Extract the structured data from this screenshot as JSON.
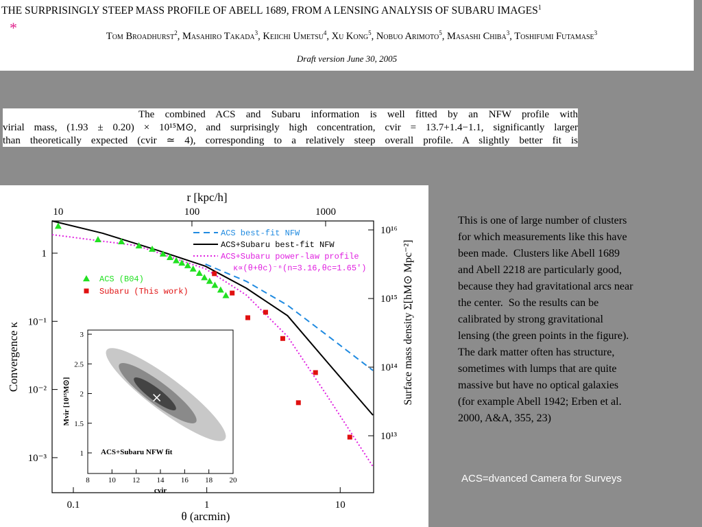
{
  "header": {
    "asterisk": "*",
    "title": "THE SURPRISINGLY STEEP MASS PROFILE OF ABELL 1689, FROM A LENSING ANALYSIS OF SUBARU IMAGES",
    "title_sup": 1,
    "authors": [
      {
        "name": "Tom Broadhurst",
        "sup": 2
      },
      {
        "name": "Masahiro Takada",
        "sup": 3
      },
      {
        "name": "Keiichi Umetsu",
        "sup": 4
      },
      {
        "name": "Xu Kong",
        "sup": 5
      },
      {
        "name": "Nobuo Arimoto",
        "sup": 5
      },
      {
        "name": "Masashi Chiba",
        "sup": 3
      },
      {
        "name": "Toshifumi Futamase",
        "sup": 3
      }
    ],
    "draft": "Draft version June 30, 2005"
  },
  "abstract": {
    "lines": [
      "The combined ACS and Subaru information is well fitted by an NFW profile with",
      "virial mass, (1.93 ± 0.20) × 10¹⁵M⊙, and surprisingly high concentration, cvir = 13.7+1.4−1.1, significantly larger",
      "than theoretically expected (cvir ≃ 4), corresponding to a relatively steep overall profile. A slightly better fit is"
    ]
  },
  "figure": {
    "xlabel": "θ (arcmin)",
    "ylabel": "Convergence κ",
    "toplabel": "r [kpc/h]",
    "rightlabel": "Surface mass density Σ[hM⊙ Mpc⁻²]",
    "xlim": [
      0.0693,
      17.8
    ],
    "ylim": [
      0.000306,
      2.97
    ],
    "toplim": [
      9.0,
      2286
    ],
    "rightlim": [
      1480000000000.0,
      1.35e+16
    ],
    "xticks": [
      0.1,
      1,
      10
    ],
    "topticks": [
      10,
      100,
      1000
    ],
    "yticks": [
      {
        "value": 0.001,
        "label": "10⁻³"
      },
      {
        "value": 0.01,
        "label": "10⁻²"
      },
      {
        "value": 0.1,
        "label": "10⁻¹"
      },
      1
    ],
    "rightticks": [
      {
        "value": 10000000000000.0,
        "label": "10¹³"
      },
      {
        "value": 100000000000000.0,
        "label": "10¹⁴"
      },
      {
        "value": 1000000000000000.0,
        "label": "10¹⁵"
      },
      {
        "value": 1e+16,
        "label": "10¹⁶"
      }
    ],
    "curves": [
      {
        "name": "ACS best-fit NFW",
        "color": "#1f8ae0",
        "dash": "9 6",
        "x": [
          0.977,
          1.98,
          4.03,
          8.18,
          17.6
        ],
        "y": [
          0.69,
          0.386,
          0.172,
          0.06,
          0.019
        ]
      },
      {
        "name": "ACS+Subaru best-fit NFW",
        "color": "#000000",
        "dash": "none",
        "x": [
          0.0693,
          0.166,
          0.428,
          0.977,
          1.98,
          4.03,
          8.18,
          17.6
        ],
        "y": [
          2.97,
          1.96,
          1.1,
          0.644,
          0.306,
          0.121,
          0.0239,
          0.0042
        ]
      },
      {
        "name": "ACS+Subaru power-law profile",
        "color": "#e020e0",
        "dash": "2 3",
        "formula": "κ∝(θ+θc)⁻ⁿ(n=3.16,θc=1.65′)",
        "x": [
          0.0693,
          0.3,
          0.977,
          1.98,
          4.03,
          8.18,
          17.6
        ],
        "y": [
          1.87,
          1.29,
          0.59,
          0.243,
          0.06,
          0.0075,
          0.00074
        ]
      }
    ],
    "series": [
      {
        "name": "ACS (B04)",
        "color": "#22e022",
        "marker": "triangle",
        "x": [
          0.077,
          0.153,
          0.229,
          0.31,
          0.39,
          0.47,
          0.53,
          0.59,
          0.65,
          0.72,
          0.79,
          0.88,
          0.96,
          1.05,
          1.15,
          1.27,
          1.39
        ],
        "y": [
          2.5,
          1.59,
          1.48,
          1.29,
          1.15,
          0.98,
          0.87,
          0.78,
          0.72,
          0.66,
          0.59,
          0.51,
          0.44,
          0.39,
          0.34,
          0.29,
          0.24
        ]
      },
      {
        "name": "Subaru (This work)",
        "color": "#e01010",
        "marker": "square",
        "x": [
          1.14,
          1.55,
          2.03,
          2.76,
          3.71,
          4.86,
          6.53,
          11.8
        ],
        "y": [
          0.5,
          0.26,
          0.113,
          0.136,
          0.056,
          0.0064,
          0.0177,
          0.002
        ]
      }
    ],
    "inset": {
      "label": "ACS+Subaru NFW fit",
      "xlabel": "cvir",
      "ylabel": "Mvir [10¹⁵M⊙]",
      "xlim": [
        8,
        20
      ],
      "ylim": [
        0.653,
        3.07
      ],
      "xticks": [
        8,
        10,
        12,
        14,
        16,
        18,
        20
      ],
      "yticks": [
        1,
        1.5,
        2,
        2.5,
        3
      ],
      "best": {
        "x": 13.7,
        "y": 1.93
      }
    }
  },
  "notes": {
    "lines": [
      "This is one of large number of clusters",
      "for which measurements like this have",
      "been made.  Clusters like Abell 1689",
      "and Abell 2218 are particularly good,",
      "because they had gravitational arcs near",
      "the center.  So the results can be",
      "calibrated by strong gravitational",
      "lensing (the green points in the figure).",
      "The dark matter often has structure,",
      "sometimes with lumps that are quite",
      "massive but have no optical galaxies",
      "(for example Abell 1942; Erben et al.",
      "2000, A&A, 355, 23)"
    ],
    "caption": "ACS=dvanced Camera for Surveys"
  }
}
